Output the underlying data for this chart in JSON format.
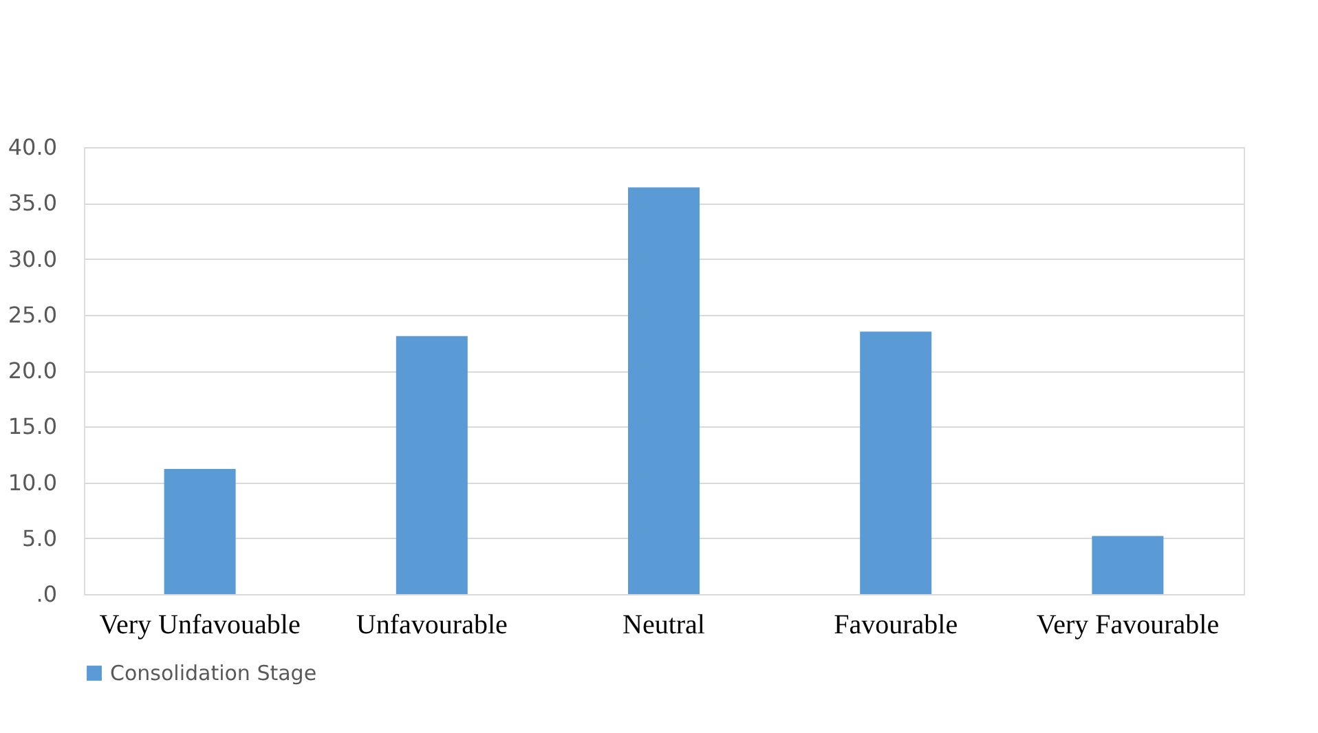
{
  "chart_data": {
    "type": "bar",
    "categories": [
      "Very Unfavouable",
      "Unfavourable",
      "Neutral",
      "Favourable",
      "Very Favourable"
    ],
    "series": [
      {
        "name": "Consolidation Stage",
        "color": "#5b9bd5",
        "values": [
          11.2,
          23.1,
          36.4,
          23.5,
          5.2
        ]
      }
    ],
    "ylim": [
      0,
      40
    ],
    "yticks": [
      {
        "value": 0,
        "label": ".0"
      },
      {
        "value": 5,
        "label": "5.0"
      },
      {
        "value": 10,
        "label": "10.0"
      },
      {
        "value": 15,
        "label": "15.0"
      },
      {
        "value": 20,
        "label": "20.0"
      },
      {
        "value": 25,
        "label": "25.0"
      },
      {
        "value": 30,
        "label": "30.0"
      },
      {
        "value": 35,
        "label": "35.0"
      },
      {
        "value": 40,
        "label": "40.0"
      }
    ],
    "grid": "y",
    "legend": "bottom"
  }
}
